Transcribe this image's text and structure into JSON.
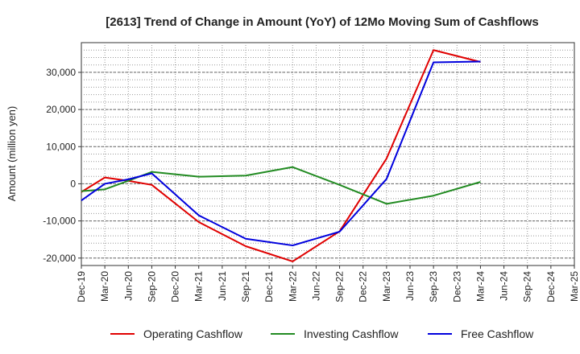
{
  "chart_data": {
    "type": "line",
    "title": "[2613]  Trend of Change in Amount (YoY) of 12Mo Moving Sum of Cashflows",
    "xlabel": "",
    "ylabel": "Amount (million yen)",
    "ylim": [
      -22000,
      38000
    ],
    "yticks": [
      -20000,
      -10000,
      0,
      10000,
      20000,
      30000
    ],
    "ytick_labels": [
      "-20,000",
      "-10,000",
      "0",
      "10,000",
      "20,000",
      "30,000"
    ],
    "categories": [
      "Dec-19",
      "Mar-20",
      "Jun-20",
      "Sep-20",
      "Dec-20",
      "Mar-21",
      "Jun-21",
      "Sep-21",
      "Dec-21",
      "Mar-22",
      "Jun-22",
      "Sep-22",
      "Dec-22",
      "Mar-23",
      "Jun-23",
      "Sep-23",
      "Dec-23",
      "Mar-24",
      "Jun-24",
      "Sep-24",
      "Dec-24",
      "Mar-25"
    ],
    "grid": true,
    "legend_position": "bottom",
    "series": [
      {
        "name": "Operating Cashflow",
        "color": "#e00000",
        "values": [
          -2200,
          1700,
          800,
          -300,
          null,
          -10300,
          null,
          -16800,
          null,
          -20900,
          null,
          -12800,
          null,
          6800,
          null,
          36000,
          null,
          32800,
          null,
          null,
          null,
          null
        ]
      },
      {
        "name": "Investing Cashflow",
        "color": "#228b22",
        "values": [
          -2000,
          -1500,
          800,
          3200,
          null,
          1900,
          null,
          2200,
          null,
          4500,
          null,
          -300,
          null,
          -5400,
          null,
          -3200,
          null,
          500,
          null,
          null,
          null,
          null
        ]
      },
      {
        "name": "Free Cashflow",
        "color": "#0000dd",
        "values": [
          -4500,
          0,
          1200,
          2800,
          null,
          -8500,
          null,
          -14800,
          null,
          -16600,
          null,
          -12900,
          null,
          1300,
          null,
          32700,
          null,
          32900,
          null,
          null,
          null,
          null
        ]
      }
    ]
  }
}
